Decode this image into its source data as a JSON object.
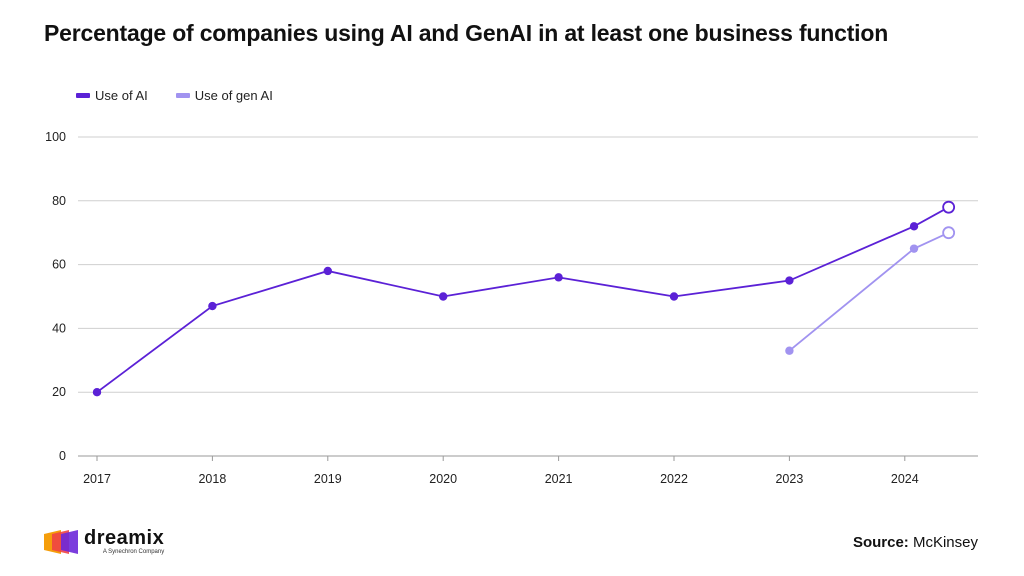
{
  "title": "Percentage of companies using AI and GenAI in at least one business function",
  "legend": [
    {
      "label": "Use of AI",
      "color": "#5b21d6"
    },
    {
      "label": "Use of gen AI",
      "color": "#a193f0"
    }
  ],
  "chart_data": {
    "type": "line",
    "title": "Percentage of companies using AI and GenAI in at least one business function",
    "xlabel": "",
    "ylabel": "",
    "ylim": [
      0,
      100
    ],
    "yticks": [
      0,
      20,
      40,
      60,
      80,
      100
    ],
    "xticks": [
      "2017",
      "2018",
      "2019",
      "2020",
      "2021",
      "2022",
      "2023",
      "2024"
    ],
    "xlim": [
      2017,
      2024.6
    ],
    "grid": true,
    "series": [
      {
        "name": "Use of AI",
        "color": "#5b21d6",
        "x": [
          2017,
          2018,
          2019,
          2020,
          2021,
          2022,
          2023,
          2024.08,
          2024.38
        ],
        "y": [
          20,
          47,
          58,
          50,
          56,
          50,
          55,
          72,
          78
        ],
        "last_point_hollow": true
      },
      {
        "name": "Use of gen AI",
        "color": "#a193f0",
        "x": [
          2023,
          2024.08,
          2024.38
        ],
        "y": [
          33,
          65,
          70
        ],
        "last_point_hollow": true
      }
    ]
  },
  "branding": {
    "name": "dreamix",
    "tagline": "A Synechron Company"
  },
  "source": {
    "label": "Source:",
    "value": "McKinsey"
  }
}
